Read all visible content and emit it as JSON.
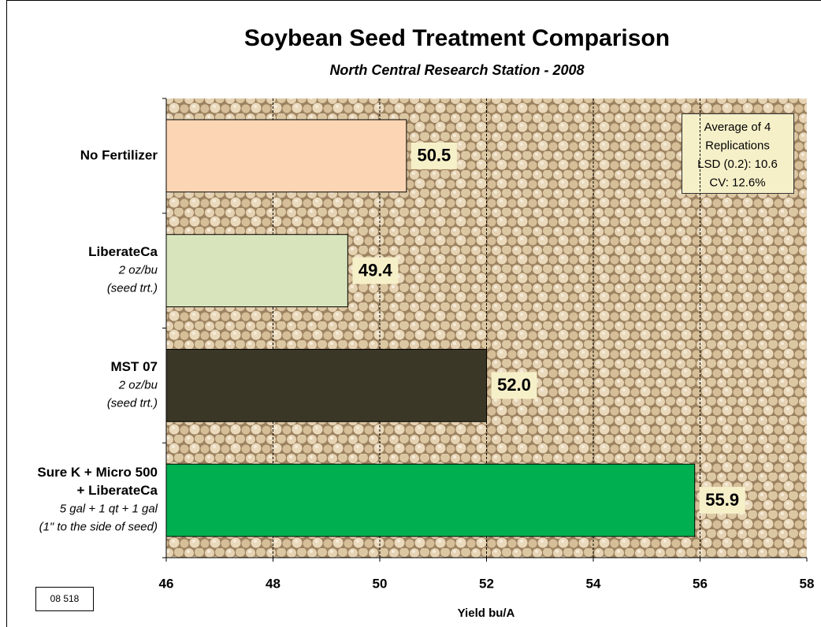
{
  "chart_data": {
    "type": "bar",
    "title": "Soybean Seed Treatment Comparison",
    "subtitle": "North Central Research Station - 2008",
    "categories": [
      [
        "No Fertilizer"
      ],
      [
        "LiberateCa"
      ],
      [
        "MST 07"
      ],
      [
        "Sure K + Micro 500",
        "+ LiberateCa"
      ]
    ],
    "category_notes": [
      null,
      [
        "2 oz/bu",
        "(seed trt.)"
      ],
      [
        "2 oz/bu",
        "(seed trt.)"
      ],
      [
        "5 gal + 1 qt + 1 gal",
        "(1\" to the side of seed)"
      ]
    ],
    "values": [
      50.5,
      49.4,
      52.0,
      55.9
    ],
    "value_labels": [
      "50.5",
      "49.4",
      "52.0",
      "55.9"
    ],
    "colors": [
      "#fcd5b5",
      "#d8e4bc",
      "#3b3727",
      "#00b050"
    ],
    "xlim": [
      46,
      58
    ],
    "xticks": [
      46,
      48,
      50,
      52,
      54,
      56,
      58
    ],
    "x_label": "Yield  bu/A",
    "grid": true,
    "annotation": [
      "Average of 4",
      "Replications",
      "LSD (0.2): 10.6",
      "CV: 12.6%"
    ],
    "code": "08 518"
  }
}
